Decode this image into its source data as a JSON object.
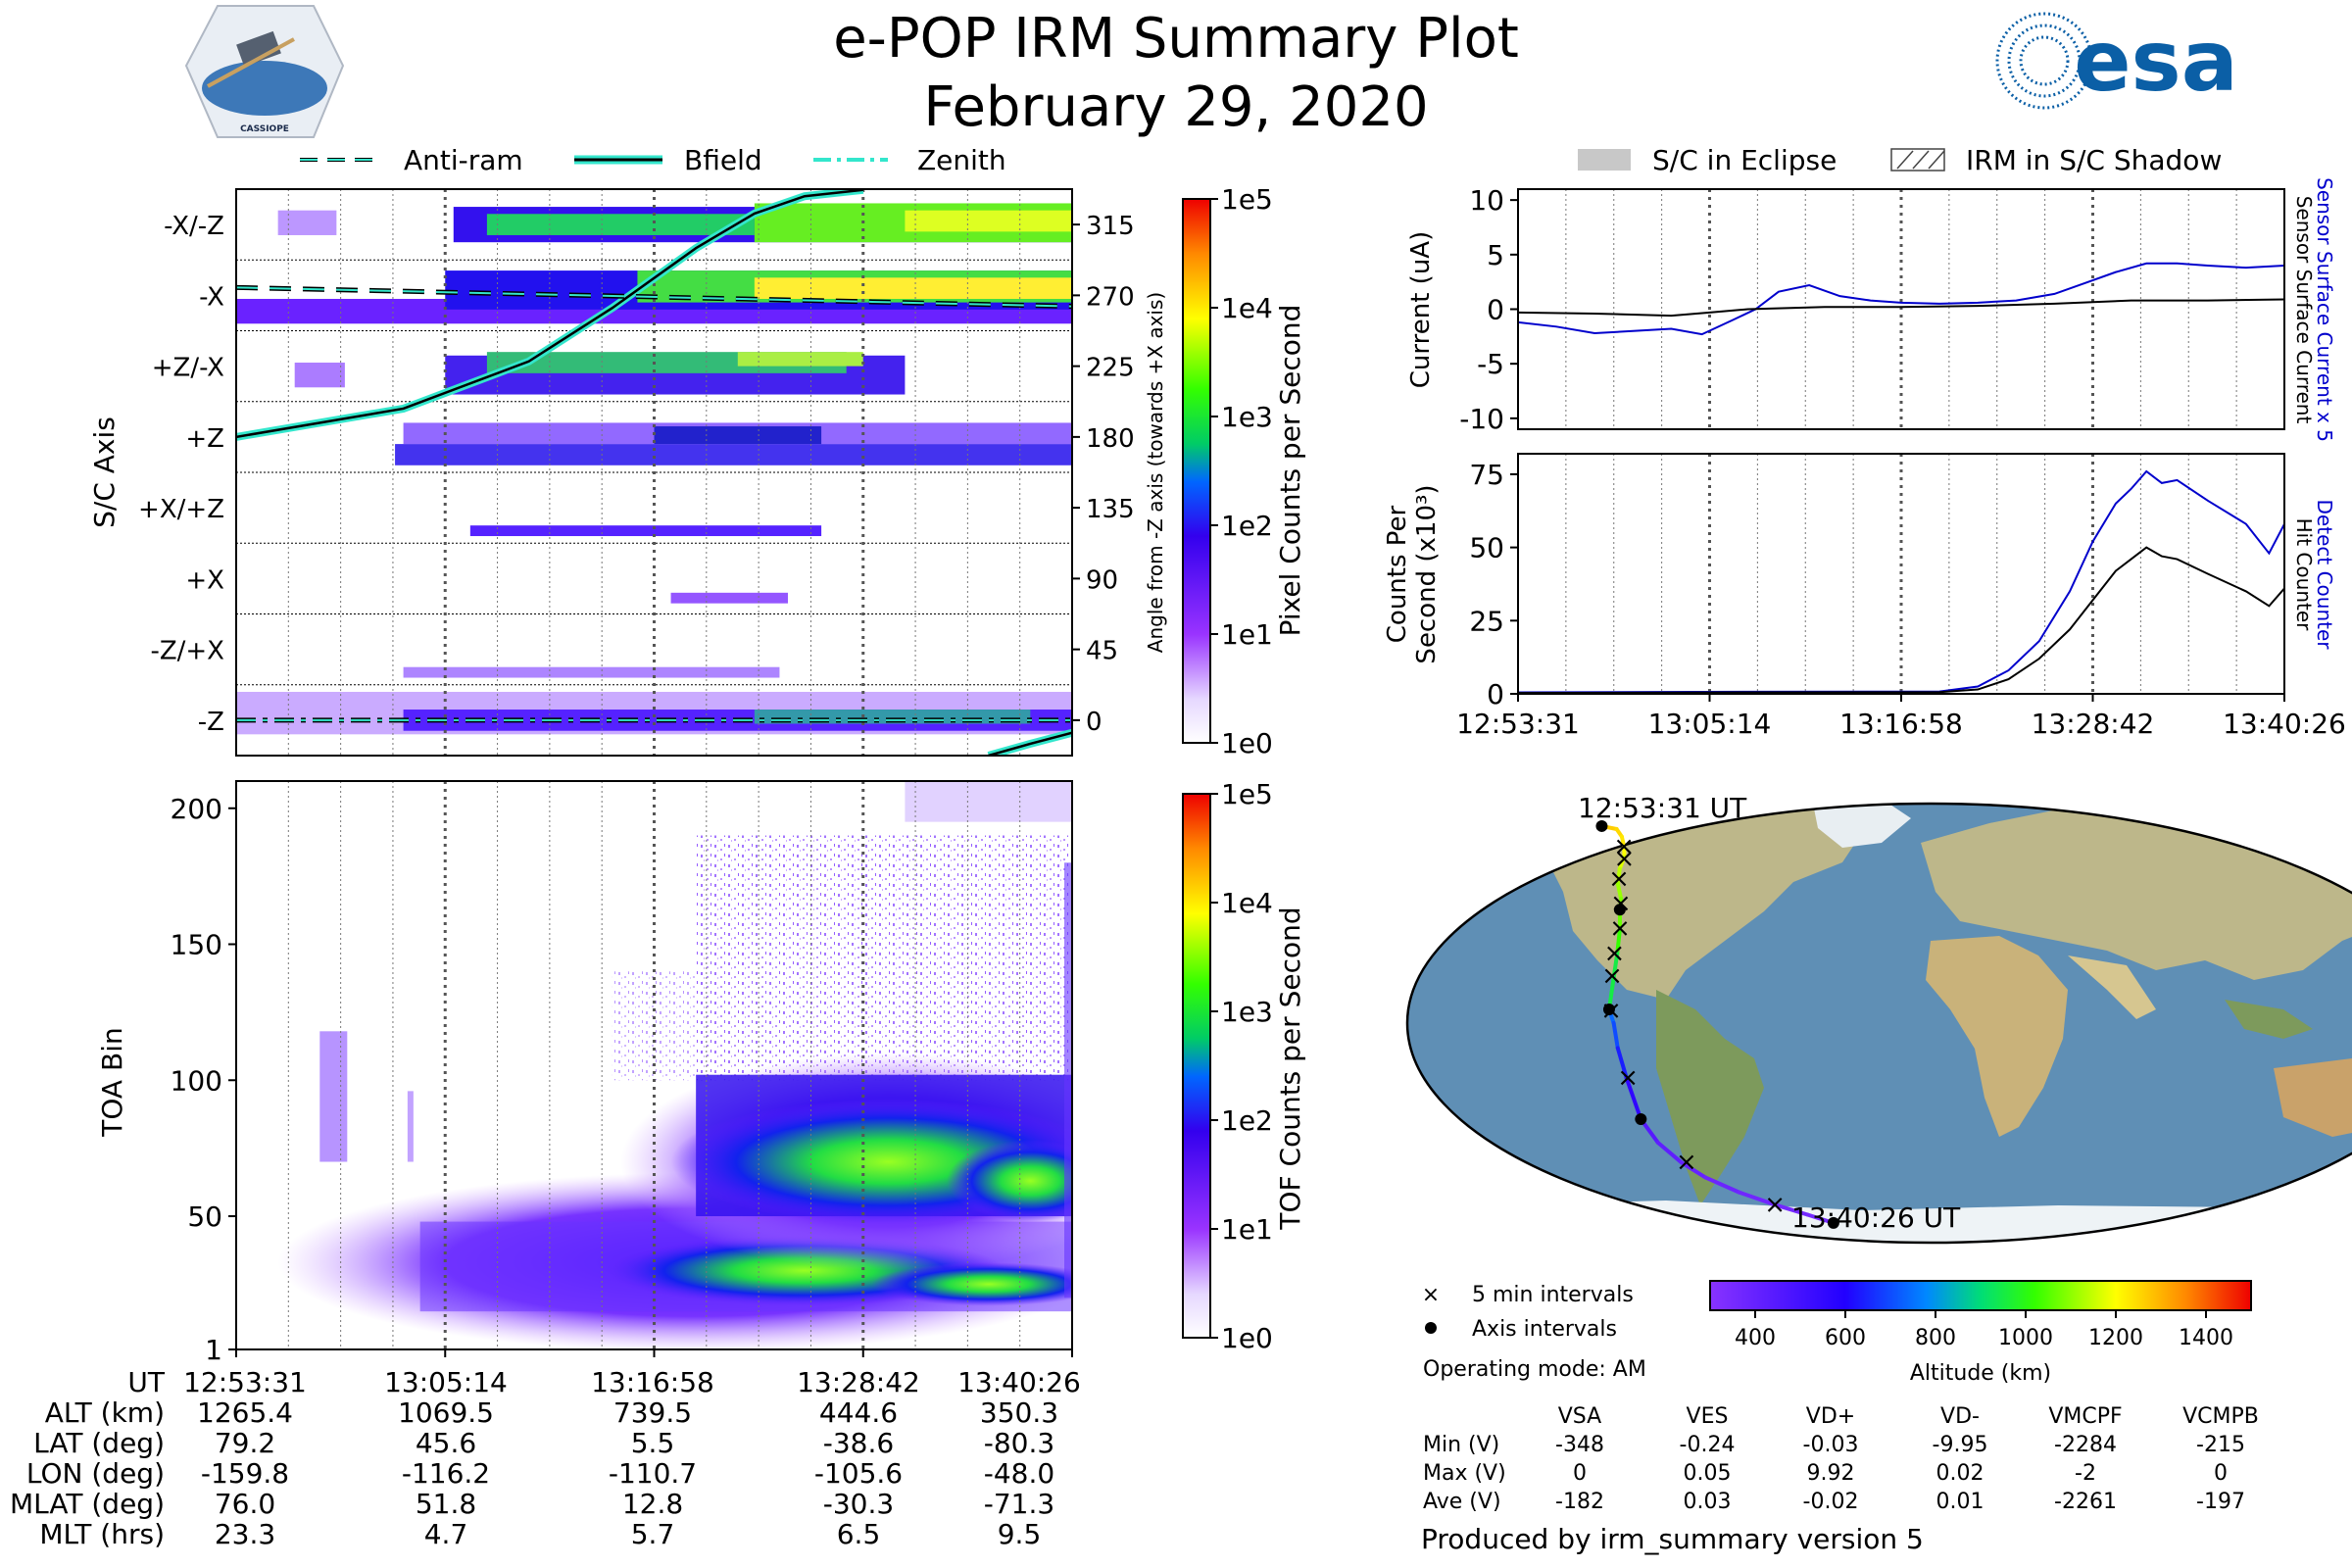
{
  "header": {
    "title_line1": "e-POP IRM Summary Plot",
    "title_line2": "February 29, 2020",
    "left_logo_text": "CASSIOPE",
    "right_logo_text": "esa"
  },
  "colors": {
    "current_blue": "#0000cc",
    "current_black": "#000000",
    "cyan_line": "#33e6cc",
    "map_ocean": "#5f8fb5",
    "map_land": "#c9c08a"
  },
  "chart_data": [
    {
      "id": "sc_axis_panel",
      "type": "heatmap",
      "ylabel": "S/C Axis",
      "right_ylabel": "Angle from -Z axis (towards +X axis)",
      "categories": [
        "-X/-Z",
        "-X",
        "+Z/-X",
        "+Z",
        "+X/+Z",
        "+X",
        "-Z/+X",
        "-Z"
      ],
      "right_ticks": [
        "315",
        "270",
        "225",
        "180",
        "135",
        "90",
        "45",
        "0"
      ],
      "angle_range": [
        -22.5,
        337.5
      ],
      "legend": [
        "Anti-ram",
        "Bfield",
        "Zenith"
      ],
      "colorbar_label": "Pixel Counts per Second",
      "colorbar_ticks": [
        "1e5",
        "1e4",
        "1e3",
        "1e2",
        "1e1",
        "1e0"
      ],
      "series": [
        {
          "name": "Bfield",
          "t": [
            0,
            0.2,
            0.35,
            0.45,
            0.55,
            0.62,
            0.68,
            0.75
          ],
          "angle": [
            180,
            198,
            228,
            262,
            300,
            322,
            333,
            337
          ]
        },
        {
          "name": "Bfield (wrapped)",
          "t": [
            0.9,
            0.95,
            1.0
          ],
          "angle": [
            -22.5,
            -15,
            -8
          ]
        },
        {
          "name": "Anti-ram",
          "t": [
            0,
            1.0
          ],
          "angle": [
            275,
            263
          ]
        },
        {
          "name": "Zenith",
          "t": [
            0,
            1.0
          ],
          "angle": [
            0,
            0
          ]
        }
      ]
    },
    {
      "id": "toa_panel",
      "type": "heatmap",
      "ylabel": "TOA Bin",
      "y_ticks": [
        "1",
        "50",
        "100",
        "150",
        "200"
      ],
      "ylim": [
        1,
        210
      ],
      "colorbar_label": "TOF Counts per Second",
      "colorbar_ticks": [
        "1e5",
        "1e4",
        "1e3",
        "1e2",
        "1e1",
        "1e0"
      ]
    },
    {
      "id": "current_panel",
      "type": "line",
      "ylabel": "Current (uA)",
      "right_labels": [
        "Sensor Surface Current x 5",
        "Sensor Surface Current"
      ],
      "y_ticks": [
        "10",
        "5",
        "0",
        "-5",
        "-10"
      ],
      "ylim": [
        -11,
        11
      ],
      "legend": [
        "S/C in Eclipse",
        "IRM in S/C Shadow"
      ],
      "series": [
        {
          "name": "Sensor Surface Current x 5",
          "t": [
            0,
            0.05,
            0.1,
            0.15,
            0.2,
            0.24,
            0.28,
            0.31,
            0.34,
            0.38,
            0.42,
            0.46,
            0.5,
            0.55,
            0.6,
            0.65,
            0.7,
            0.74,
            0.78,
            0.82,
            0.86,
            0.9,
            0.95,
            1.0
          ],
          "values": [
            -1.2,
            -1.6,
            -2.2,
            -2.0,
            -1.8,
            -2.3,
            -1.0,
            0.0,
            1.6,
            2.2,
            1.2,
            0.8,
            0.6,
            0.5,
            0.6,
            0.8,
            1.4,
            2.4,
            3.4,
            4.2,
            4.2,
            4.0,
            3.8,
            4.0
          ]
        },
        {
          "name": "Sensor Surface Current",
          "t": [
            0,
            0.1,
            0.2,
            0.25,
            0.3,
            0.4,
            0.5,
            0.6,
            0.7,
            0.8,
            0.9,
            1.0
          ],
          "values": [
            -0.3,
            -0.4,
            -0.6,
            -0.3,
            0.0,
            0.2,
            0.2,
            0.3,
            0.5,
            0.8,
            0.8,
            0.9
          ]
        }
      ]
    },
    {
      "id": "counts_panel",
      "type": "line",
      "ylabel_line1": "Counts Per",
      "ylabel_line2": "Second (x10³)",
      "right_labels": [
        "Detect Counter",
        "Hit Counter"
      ],
      "y_ticks": [
        "75",
        "50",
        "25",
        "0"
      ],
      "ylim": [
        0,
        82
      ],
      "x_ticks": [
        "12:53:31",
        "13:05:14",
        "13:16:58",
        "13:28:42",
        "13:40:26"
      ],
      "series": [
        {
          "name": "Detect Counter",
          "t": [
            0,
            0.3,
            0.55,
            0.6,
            0.64,
            0.68,
            0.72,
            0.75,
            0.78,
            0.8,
            0.82,
            0.84,
            0.86,
            0.9,
            0.95,
            0.98,
            1.0
          ],
          "values": [
            0.5,
            0.7,
            0.8,
            2.5,
            8,
            18,
            35,
            52,
            65,
            70,
            76,
            72,
            73,
            66,
            58,
            48,
            58
          ]
        },
        {
          "name": "Hit Counter",
          "t": [
            0,
            0.3,
            0.55,
            0.6,
            0.64,
            0.68,
            0.72,
            0.75,
            0.78,
            0.8,
            0.82,
            0.84,
            0.86,
            0.9,
            0.95,
            0.98,
            1.0
          ],
          "values": [
            0.3,
            0.5,
            0.6,
            1.5,
            5,
            12,
            22,
            32,
            42,
            46,
            50,
            47,
            46,
            41,
            35,
            30,
            36
          ]
        }
      ]
    },
    {
      "id": "ground_track",
      "type": "scatter",
      "start_label": "12:53:31 UT",
      "end_label": "13:40:26 UT",
      "track_lon": [
        -159.8,
        -150,
        -142,
        -135,
        -130,
        -127,
        -123,
        -118,
        -116.2,
        -113,
        -111,
        -110.7,
        -109,
        -108,
        -106.5,
        -105.6,
        -103,
        -98,
        -92,
        -82,
        -70,
        -58,
        -48
      ],
      "track_lat": [
        79.2,
        78,
        75,
        71,
        67,
        62,
        56,
        50,
        45.6,
        38,
        28,
        5.5,
        0,
        -10,
        -22,
        -38.6,
        -48,
        -56,
        -62,
        -68,
        -73,
        -77,
        -80.3
      ],
      "track_alt_km": [
        1265.4,
        1250,
        1230,
        1200,
        1170,
        1140,
        1110,
        1085,
        1069.5,
        1020,
        950,
        739.5,
        700,
        640,
        560,
        444.6,
        420,
        400,
        385,
        372,
        362,
        355,
        350.3
      ],
      "five_min_marks": [
        [
          -135,
          71
        ],
        [
          -129,
          66
        ],
        [
          -124,
          58
        ],
        [
          -117,
          48
        ],
        [
          -113,
          38
        ],
        [
          -112,
          28
        ],
        [
          -111,
          19
        ],
        [
          -110,
          5
        ],
        [
          -106,
          -22
        ],
        [
          -96,
          -56
        ],
        [
          -70,
          -73
        ]
      ],
      "axis_marks": [
        [
          -159.8,
          79.2
        ],
        [
          -116.2,
          45.6
        ],
        [
          -110.7,
          5.5
        ],
        [
          -105.6,
          -38.6
        ],
        [
          -48,
          -80.3
        ]
      ],
      "colorbar_label": "Altitude (km)",
      "colorbar_ticks": [
        "400",
        "600",
        "800",
        "1000",
        "1200",
        "1400"
      ],
      "colorbar_range": [
        300,
        1500
      ],
      "legend": [
        "5 min intervals",
        "Axis intervals"
      ]
    }
  ],
  "time_axis": {
    "labels": [
      "12:53:31",
      "13:05:14",
      "13:16:58",
      "13:28:42",
      "13:40:26"
    ]
  },
  "ephemeris": {
    "row_labels": [
      "UT",
      "ALT (km)",
      "LAT (deg)",
      "LON (deg)",
      "MLAT (deg)",
      "MLT (hrs)"
    ],
    "alt": [
      "1265.4",
      "1069.5",
      "739.5",
      "444.6",
      "350.3"
    ],
    "lat": [
      "79.2",
      "45.6",
      "5.5",
      "-38.6",
      "-80.3"
    ],
    "lon": [
      "-159.8",
      "-116.2",
      "-110.7",
      "-105.6",
      "-48.0"
    ],
    "mlat": [
      "76.0",
      "51.8",
      "12.8",
      "-30.3",
      "-71.3"
    ],
    "mlt": [
      "23.3",
      "4.7",
      "5.7",
      "6.5",
      "9.5"
    ]
  },
  "voltage_table": {
    "operating_mode": "Operating mode: AM",
    "columns": [
      "VSA",
      "VES",
      "VD+",
      "VD-",
      "VMCPF",
      "VCMPB"
    ],
    "rows": [
      {
        "label": "Min (V)",
        "values": [
          "-348",
          "-0.24",
          "-0.03",
          "-9.95",
          "-2284",
          "-215"
        ]
      },
      {
        "label": "Max (V)",
        "values": [
          "0",
          "0.05",
          "9.92",
          "0.02",
          "-2",
          "0"
        ]
      },
      {
        "label": "Ave (V)",
        "values": [
          "-182",
          "0.03",
          "-0.02",
          "0.01",
          "-2261",
          "-197"
        ]
      }
    ],
    "footer": "Produced by irm_summary version 5"
  }
}
